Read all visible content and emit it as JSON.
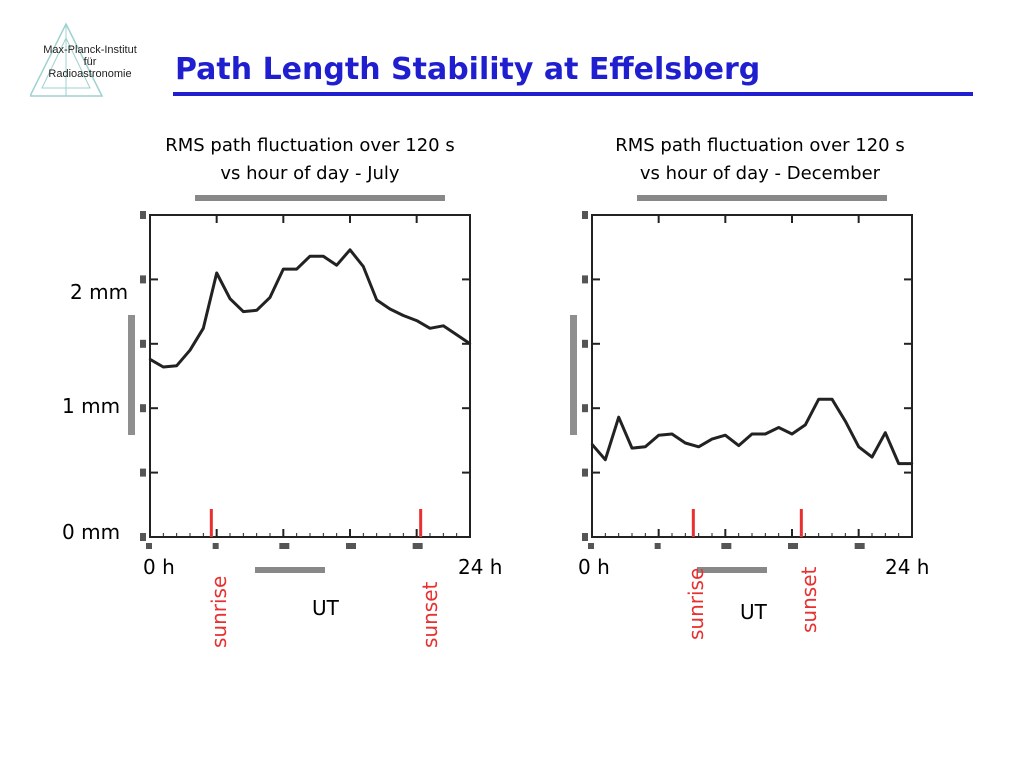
{
  "logo": {
    "line1": "Max-Planck-Institut",
    "line2": "für",
    "line3": "Radioastronomie"
  },
  "slide": {
    "title": "Path Length Stability at Effelsberg"
  },
  "colors": {
    "title": "#1f1fd0",
    "sun_marker": "#e83030",
    "trace": "#222222"
  },
  "y_labels": {
    "two_mm": "2 mm",
    "one_mm": "1 mm",
    "zero_mm": "0 mm"
  },
  "chart_data": [
    {
      "type": "line",
      "caption_line1": "RMS path fluctuation over 120 s",
      "caption_line2": "vs hour of day - July",
      "xlabel": "UT",
      "x_start_label": "0 h",
      "x_end_label": "24 h",
      "xlim": [
        0,
        24
      ],
      "ylim": [
        0,
        2.5
      ],
      "x": [
        0,
        1,
        2,
        3,
        4,
        5,
        6,
        7,
        8,
        9,
        10,
        11,
        12,
        13,
        14,
        15,
        16,
        17,
        18,
        19,
        20,
        21,
        22,
        23,
        24
      ],
      "y": [
        1.38,
        1.32,
        1.33,
        1.45,
        1.62,
        2.05,
        1.85,
        1.75,
        1.76,
        1.86,
        2.08,
        2.08,
        2.18,
        2.18,
        2.11,
        2.23,
        2.1,
        1.84,
        1.77,
        1.72,
        1.68,
        1.62,
        1.64,
        1.57,
        1.5
      ],
      "markers": [
        {
          "label": "sunrise",
          "hour": 4.6
        },
        {
          "label": "sunset",
          "hour": 20.3
        }
      ]
    },
    {
      "type": "line",
      "caption_line1": "RMS path fluctuation over 120 s",
      "caption_line2": "vs hour of day - December",
      "xlabel": "UT",
      "x_start_label": "0 h",
      "x_end_label": "24 h",
      "xlim": [
        0,
        24
      ],
      "ylim": [
        0,
        2.5
      ],
      "x": [
        0,
        1,
        2,
        3,
        4,
        5,
        6,
        7,
        8,
        9,
        10,
        11,
        12,
        13,
        14,
        15,
        16,
        17,
        18,
        19,
        20,
        21,
        22,
        23,
        24
      ],
      "y": [
        0.72,
        0.6,
        0.93,
        0.69,
        0.7,
        0.79,
        0.8,
        0.73,
        0.7,
        0.76,
        0.79,
        0.71,
        0.8,
        0.8,
        0.85,
        0.8,
        0.87,
        1.07,
        1.07,
        0.9,
        0.7,
        0.62,
        0.81,
        0.57,
        0.57
      ],
      "markers": [
        {
          "label": "sunrise",
          "hour": 7.6
        },
        {
          "label": "sunset",
          "hour": 15.7
        }
      ]
    }
  ]
}
